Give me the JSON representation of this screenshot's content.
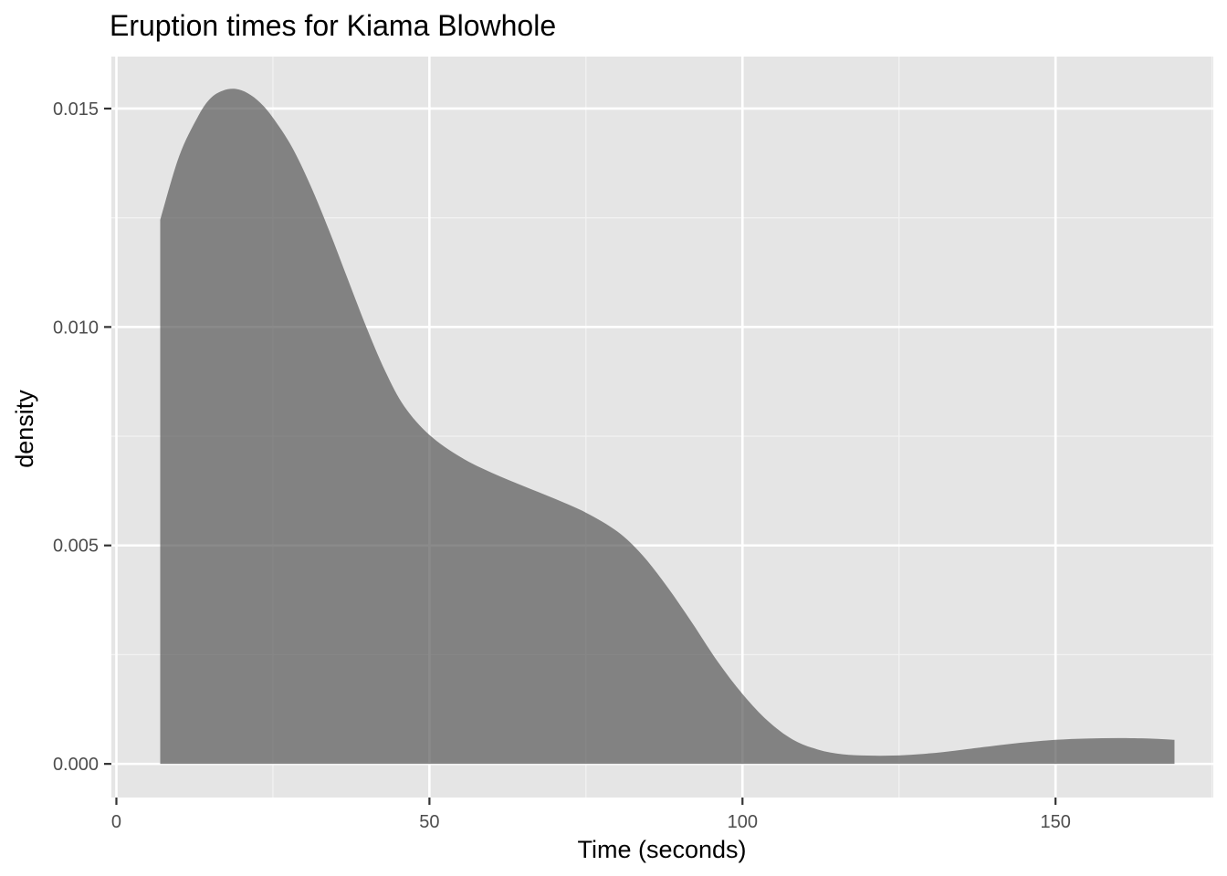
{
  "chart_data": {
    "type": "area",
    "title": "Eruption times for Kiama Blowhole",
    "xlabel": "Time (seconds)",
    "ylabel": "density",
    "xlim": [
      -0.8,
      175.2
    ],
    "ylim": [
      -0.00077,
      0.01619
    ],
    "x_ticks": [
      0,
      50,
      100,
      150
    ],
    "x_tick_labels": [
      "0",
      "50",
      "100",
      "150"
    ],
    "y_ticks": [
      0.0,
      0.005,
      0.01,
      0.015
    ],
    "y_tick_labels": [
      "0.000",
      "0.005",
      "0.010",
      "0.015"
    ],
    "grid": true,
    "series": [
      {
        "x": [
          7,
          10,
          13,
          15,
          17,
          19,
          21,
          23,
          25,
          28,
          31,
          34,
          37,
          40,
          43,
          46,
          50,
          55,
          60,
          65,
          70,
          75,
          80,
          84,
          88,
          92,
          96,
          100,
          104,
          108,
          112,
          116,
          120,
          124,
          128,
          132,
          136,
          140,
          145,
          150,
          155,
          160,
          165,
          169
        ],
        "y": [
          0.01245,
          0.0139,
          0.01481,
          0.01523,
          0.01541,
          0.01545,
          0.01535,
          0.01513,
          0.01479,
          0.01413,
          0.01324,
          0.0122,
          0.01108,
          0.00997,
          0.00897,
          0.00818,
          0.00753,
          0.00702,
          0.00666,
          0.00636,
          0.00607,
          0.00575,
          0.00532,
          0.00478,
          0.00405,
          0.00322,
          0.00235,
          0.0016,
          0.00099,
          0.00056,
          0.00033,
          0.00022,
          0.00019,
          0.00019,
          0.00022,
          0.00027,
          0.00034,
          0.00041,
          0.00049,
          0.00055,
          0.00058,
          0.00059,
          0.00058,
          0.00055
        ]
      }
    ]
  }
}
